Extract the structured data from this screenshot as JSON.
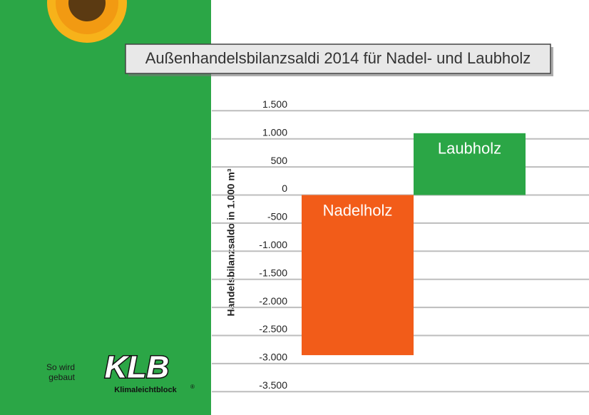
{
  "chart_data": {
    "type": "bar",
    "title": "Außenhandelsbilanzsaldi 2014 für Nadel- und Laubholz",
    "y_label": "Handelsbilanzsaldo in 1.000 m³",
    "categories": [
      "Nadelholz",
      "Laubholz"
    ],
    "values": [
      -2850,
      1100
    ],
    "colors": [
      "#f25c19",
      "#2ba646"
    ],
    "ylim": [
      -3500,
      1500
    ],
    "yticks": [
      {
        "value": 1500,
        "label": "1.500"
      },
      {
        "value": 1000,
        "label": "1.000"
      },
      500,
      0,
      -500,
      {
        "value": -1000,
        "label": "-1.000"
      },
      {
        "value": -1500,
        "label": "-1.500"
      },
      {
        "value": -2000,
        "label": "-2.000"
      },
      {
        "value": -2500,
        "label": "-2.500"
      },
      {
        "value": -3000,
        "label": "-3.000"
      },
      {
        "value": -3500,
        "label": "-3.500"
      }
    ],
    "grid": true
  },
  "branding": {
    "slogan_line1": "So wird",
    "slogan_line2": "gebaut",
    "logo": "KLB",
    "logo_subtitle": "Klimaleichtblock",
    "registered": "®"
  }
}
